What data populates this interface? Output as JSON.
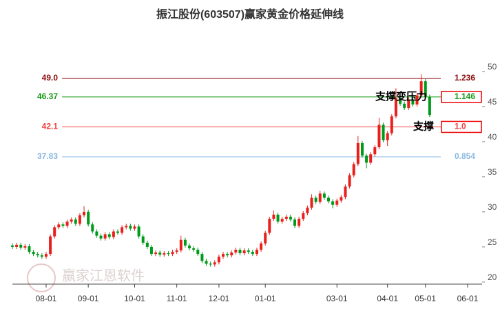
{
  "chart_data": {
    "type": "candlestick",
    "title": "振江股份(603507)赢家黄金价格延伸线",
    "watermark": "赢家江恩软件",
    "categories": [
      null,
      null,
      null,
      null,
      null,
      null,
      null,
      null,
      "08-01",
      null,
      null,
      null,
      null,
      null,
      null,
      null,
      null,
      null,
      "09-01",
      null,
      null,
      null,
      null,
      null,
      null,
      null,
      null,
      null,
      null,
      "10-01",
      null,
      null,
      null,
      null,
      null,
      null,
      null,
      null,
      null,
      "11-01",
      null,
      null,
      null,
      null,
      null,
      null,
      null,
      null,
      null,
      "12-01",
      null,
      null,
      null,
      null,
      null,
      null,
      null,
      null,
      null,
      null,
      "01-01",
      null,
      null,
      null,
      null,
      null,
      null,
      null,
      null,
      null,
      null,
      null,
      null,
      null,
      null,
      null,
      null,
      "03-01",
      null,
      null,
      null,
      null,
      null,
      null,
      null,
      null,
      null,
      null,
      null,
      "04-01",
      null,
      null,
      null,
      null,
      null,
      null,
      null,
      null,
      "05-01",
      null,
      null,
      null,
      null,
      null,
      null,
      null,
      null,
      null,
      "06-01"
    ],
    "ohlc": [
      [
        25.2,
        25.5,
        24.7,
        25.0
      ],
      [
        25.0,
        25.6,
        24.7,
        25.3
      ],
      [
        25.3,
        25.6,
        24.6,
        24.9
      ],
      [
        24.9,
        25.4,
        24.6,
        25.1
      ],
      [
        25.1,
        25.4,
        24.0,
        24.3
      ],
      [
        24.3,
        24.6,
        23.7,
        24.0
      ],
      [
        24.0,
        24.3,
        23.5,
        23.8
      ],
      [
        23.8,
        24.1,
        23.3,
        23.6
      ],
      [
        23.6,
        24.3,
        23.3,
        24.0
      ],
      [
        24.0,
        26.8,
        23.7,
        26.5
      ],
      [
        26.5,
        28.1,
        26.2,
        27.8
      ],
      [
        27.8,
        28.5,
        27.5,
        28.2
      ],
      [
        28.2,
        28.5,
        27.7,
        28.0
      ],
      [
        28.0,
        28.9,
        27.7,
        28.6
      ],
      [
        28.6,
        29.2,
        28.3,
        28.9
      ],
      [
        28.9,
        29.2,
        28.0,
        28.3
      ],
      [
        28.3,
        29.8,
        28.0,
        29.5
      ],
      [
        29.5,
        30.8,
        29.2,
        30.0
      ],
      [
        30.0,
        30.3,
        27.9,
        28.2
      ],
      [
        28.2,
        28.5,
        26.9,
        27.2
      ],
      [
        27.2,
        27.5,
        26.3,
        26.6
      ],
      [
        26.6,
        26.9,
        25.9,
        26.2
      ],
      [
        26.2,
        27.1,
        25.9,
        26.8
      ],
      [
        26.8,
        27.1,
        26.1,
        26.4
      ],
      [
        26.4,
        27.5,
        26.1,
        27.2
      ],
      [
        27.2,
        27.5,
        26.7,
        27.0
      ],
      [
        27.0,
        28.1,
        26.7,
        27.8
      ],
      [
        27.8,
        28.3,
        27.5,
        28.0
      ],
      [
        28.0,
        28.3,
        27.3,
        27.6
      ],
      [
        27.6,
        28.2,
        27.3,
        27.9
      ],
      [
        27.9,
        28.2,
        26.2,
        26.5
      ],
      [
        26.5,
        26.8,
        25.3,
        25.6
      ],
      [
        25.6,
        25.9,
        24.7,
        25.0
      ],
      [
        25.0,
        25.3,
        23.7,
        24.0
      ],
      [
        24.0,
        24.5,
        23.7,
        24.2
      ],
      [
        24.2,
        24.5,
        23.6,
        23.9
      ],
      [
        23.9,
        24.4,
        23.6,
        24.1
      ],
      [
        24.1,
        24.4,
        23.7,
        24.0
      ],
      [
        24.0,
        24.6,
        23.7,
        24.3
      ],
      [
        24.3,
        24.8,
        24.0,
        24.5
      ],
      [
        24.5,
        26.6,
        24.2,
        26.0
      ],
      [
        26.0,
        26.3,
        24.9,
        25.2
      ],
      [
        25.2,
        25.5,
        24.5,
        24.8
      ],
      [
        24.8,
        25.1,
        24.3,
        24.6
      ],
      [
        24.6,
        24.9,
        23.7,
        24.0
      ],
      [
        24.0,
        24.3,
        22.7,
        23.0
      ],
      [
        23.0,
        23.3,
        22.3,
        22.6
      ],
      [
        22.6,
        22.9,
        22.2,
        22.5
      ],
      [
        22.5,
        23.1,
        22.2,
        22.8
      ],
      [
        22.8,
        23.9,
        22.5,
        23.6
      ],
      [
        23.6,
        24.3,
        23.3,
        24.0
      ],
      [
        24.0,
        24.3,
        23.5,
        23.8
      ],
      [
        23.8,
        24.5,
        23.5,
        24.2
      ],
      [
        24.2,
        24.9,
        23.9,
        24.6
      ],
      [
        24.6,
        24.9,
        23.8,
        24.1
      ],
      [
        24.1,
        24.8,
        23.8,
        24.5
      ],
      [
        24.5,
        24.8,
        24.0,
        24.3
      ],
      [
        24.3,
        24.6,
        23.7,
        24.0
      ],
      [
        24.0,
        24.9,
        23.7,
        24.6
      ],
      [
        24.6,
        25.8,
        24.3,
        25.5
      ],
      [
        25.5,
        27.3,
        25.2,
        27.0
      ],
      [
        27.0,
        29.3,
        26.7,
        29.0
      ],
      [
        29.0,
        30.2,
        28.7,
        29.6
      ],
      [
        29.6,
        29.9,
        28.3,
        28.6
      ],
      [
        28.6,
        29.3,
        28.3,
        29.0
      ],
      [
        29.0,
        29.6,
        28.7,
        29.3
      ],
      [
        29.3,
        29.6,
        28.6,
        28.9
      ],
      [
        28.9,
        29.2,
        27.7,
        28.0
      ],
      [
        28.0,
        29.3,
        27.7,
        29.0
      ],
      [
        29.0,
        30.1,
        28.7,
        29.8
      ],
      [
        29.8,
        30.9,
        29.5,
        30.6
      ],
      [
        30.6,
        32.5,
        30.3,
        32.0
      ],
      [
        32.0,
        32.3,
        31.1,
        31.4
      ],
      [
        31.4,
        33.0,
        31.1,
        32.6
      ],
      [
        32.6,
        32.9,
        31.7,
        32.0
      ],
      [
        32.0,
        32.3,
        31.2,
        31.5
      ],
      [
        31.5,
        31.8,
        30.5,
        31.0
      ],
      [
        31.0,
        31.9,
        30.7,
        31.6
      ],
      [
        31.6,
        32.4,
        31.3,
        32.1
      ],
      [
        32.1,
        33.9,
        31.8,
        33.6
      ],
      [
        33.6,
        35.5,
        33.3,
        35.2
      ],
      [
        35.2,
        37.1,
        34.9,
        36.8
      ],
      [
        36.8,
        40.8,
        36.5,
        39.8
      ],
      [
        39.8,
        40.1,
        37.7,
        38.0
      ],
      [
        38.0,
        38.3,
        36.2,
        37.0
      ],
      [
        37.0,
        38.5,
        36.7,
        38.2
      ],
      [
        38.2,
        39.5,
        37.9,
        39.2
      ],
      [
        39.2,
        43.4,
        38.9,
        42.4
      ],
      [
        42.4,
        42.7,
        39.9,
        40.2
      ],
      [
        40.2,
        41.5,
        39.4,
        41.2
      ],
      [
        41.2,
        43.9,
        40.9,
        43.6
      ],
      [
        43.6,
        47.6,
        43.3,
        46.2
      ],
      [
        46.2,
        46.8,
        45.1,
        45.4
      ],
      [
        45.4,
        45.7,
        44.5,
        44.8
      ],
      [
        44.8,
        46.3,
        44.5,
        46.0
      ],
      [
        46.0,
        46.3,
        45.0,
        45.3
      ],
      [
        45.3,
        46.9,
        45.0,
        46.6
      ],
      [
        46.6,
        49.6,
        46.3,
        48.6
      ],
      [
        48.6,
        48.9,
        46.1,
        46.4
      ],
      [
        46.4,
        46.7,
        43.5,
        43.8
      ],
      null,
      null,
      null,
      null,
      null,
      null,
      null,
      null,
      null
    ],
    "up_color": "#e8201c",
    "down_color": "#009a1a",
    "levels": [
      {
        "price": {
          "value": 49.0,
          "label": "49.0"
        },
        "ratio": "1.236",
        "color": "#8b0a0a",
        "boxed": false
      },
      {
        "price": 46.37,
        "ratio": "1.146",
        "color": "#169a16",
        "boxed": true
      },
      {
        "price": 42.1,
        "ratio": "1.0",
        "color": "#f03c3c",
        "boxed": true
      },
      {
        "price": 37.83,
        "ratio": "0.854",
        "color": "#8ab8e0",
        "boxed": false
      }
    ],
    "annotations": [
      {
        "text": "支撑变压力",
        "price": 46.37
      },
      {
        "text": "支撑",
        "price": 42.1
      }
    ],
    "ylim": [
      19.7,
      54.3
    ],
    "yticks": [
      20,
      25,
      30,
      35,
      40,
      45,
      50
    ]
  }
}
